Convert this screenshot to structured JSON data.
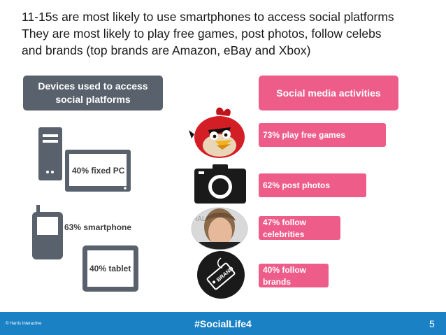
{
  "headline": {
    "line1": "11-15s are most likely to use smartphones to access social platforms",
    "line2": "They are most likely to play free games, post photos, follow celebs",
    "line3": "and brands (top brands are Amazon, eBay and Xbox)"
  },
  "devices": {
    "header": "Devices used to access social platforms",
    "items": [
      {
        "label": "40% fixed PC",
        "icon": "desktop-pc-icon"
      },
      {
        "label": "63% smartphone",
        "icon": "mobile-phone-icon"
      },
      {
        "label": "40% tablet",
        "icon": "tablet-icon"
      }
    ]
  },
  "activities": {
    "header": "Social media activities",
    "items": [
      {
        "label": "73% play free games",
        "icon": "angry-bird-icon",
        "value": 73
      },
      {
        "label": "62% post photos",
        "icon": "camera-icon",
        "value": 62
      },
      {
        "label_line1": "47% follow",
        "label_line2": "celebrities",
        "icon": "celebrity-photo-icon",
        "value": 47
      },
      {
        "label_line1": "40% follow",
        "label_line2": "brands",
        "icon": "brand-tag-icon",
        "value": 40
      }
    ]
  },
  "footer": {
    "copyright": "© Harris Interactive",
    "hashtag": "#SocialLife4",
    "page": "5"
  },
  "colors": {
    "pink": "#ee5c8a",
    "gray": "#59626c",
    "footer_blue": "#1a82c4"
  }
}
